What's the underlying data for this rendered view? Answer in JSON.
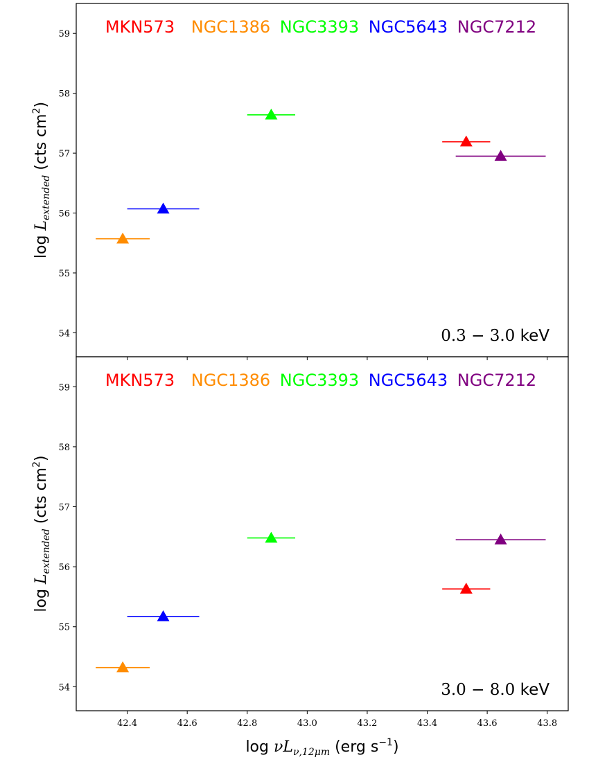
{
  "chart_data": {
    "type": "scatter",
    "x_range": [
      42.23,
      43.87
    ],
    "y_range": [
      53.6,
      59.5
    ],
    "x_ticks": [
      42.4,
      42.6,
      42.8,
      43.0,
      43.2,
      43.4,
      43.6,
      43.8
    ],
    "x_tick_labels": [
      "42.4",
      "42.6",
      "42.8",
      "43.0",
      "43.2",
      "43.4",
      "43.6",
      "43.8"
    ],
    "y_ticks": [
      54,
      55,
      56,
      57,
      58,
      59
    ],
    "y_tick_labels": [
      "54",
      "55",
      "56",
      "57",
      "58",
      "59"
    ],
    "xlabel_prefix": "log ",
    "xlabel_math": "νL",
    "xlabel_sub": "ν,12μm",
    "xlabel_unit": " (erg s",
    "xlabel_unit_sup": "−1",
    "xlabel_unit_close": ")",
    "ylabel_prefix": "log ",
    "ylabel_math": "L",
    "ylabel_sub": "extended",
    "ylabel_unit": " (cts cm",
    "ylabel_unit_sup": "2",
    "ylabel_unit_close": ")",
    "legend": [
      {
        "name": "MKN573",
        "color": "#ff0000"
      },
      {
        "name": "NGC1386",
        "color": "#ff8c00"
      },
      {
        "name": "NGC3393",
        "color": "#00ff00"
      },
      {
        "name": "NGC5643",
        "color": "#0000ff"
      },
      {
        "name": "NGC7212",
        "color": "#800080"
      }
    ],
    "panels": [
      {
        "band_value": "0.3 − 3.0",
        "band_unit": " keV",
        "points": [
          {
            "name": "MKN573",
            "color": "#ff0000",
            "x": 43.53,
            "y": 57.19,
            "xerr_low": 43.45,
            "xerr_high": 43.61
          },
          {
            "name": "NGC1386",
            "color": "#ff8c00",
            "x": 42.385,
            "y": 55.57,
            "xerr_low": 42.295,
            "xerr_high": 42.475
          },
          {
            "name": "NGC3393",
            "color": "#00ff00",
            "x": 42.88,
            "y": 57.64,
            "xerr_low": 42.8,
            "xerr_high": 42.96
          },
          {
            "name": "NGC5643",
            "color": "#0000ff",
            "x": 42.52,
            "y": 56.07,
            "xerr_low": 42.4,
            "xerr_high": 42.64
          },
          {
            "name": "NGC7212",
            "color": "#800080",
            "x": 43.645,
            "y": 56.95,
            "xerr_low": 43.495,
            "xerr_high": 43.795
          }
        ]
      },
      {
        "band_value": "3.0 − 8.0",
        "band_unit": " keV",
        "points": [
          {
            "name": "MKN573",
            "color": "#ff0000",
            "x": 43.53,
            "y": 55.63,
            "xerr_low": 43.45,
            "xerr_high": 43.61
          },
          {
            "name": "NGC1386",
            "color": "#ff8c00",
            "x": 42.385,
            "y": 54.32,
            "xerr_low": 42.295,
            "xerr_high": 42.475
          },
          {
            "name": "NGC3393",
            "color": "#00ff00",
            "x": 42.88,
            "y": 56.48,
            "xerr_low": 42.8,
            "xerr_high": 42.96
          },
          {
            "name": "NGC5643",
            "color": "#0000ff",
            "x": 42.52,
            "y": 55.17,
            "xerr_low": 42.4,
            "xerr_high": 42.64
          },
          {
            "name": "NGC7212",
            "color": "#800080",
            "x": 43.645,
            "y": 56.45,
            "xerr_low": 43.495,
            "xerr_high": 43.795
          }
        ]
      }
    ]
  }
}
